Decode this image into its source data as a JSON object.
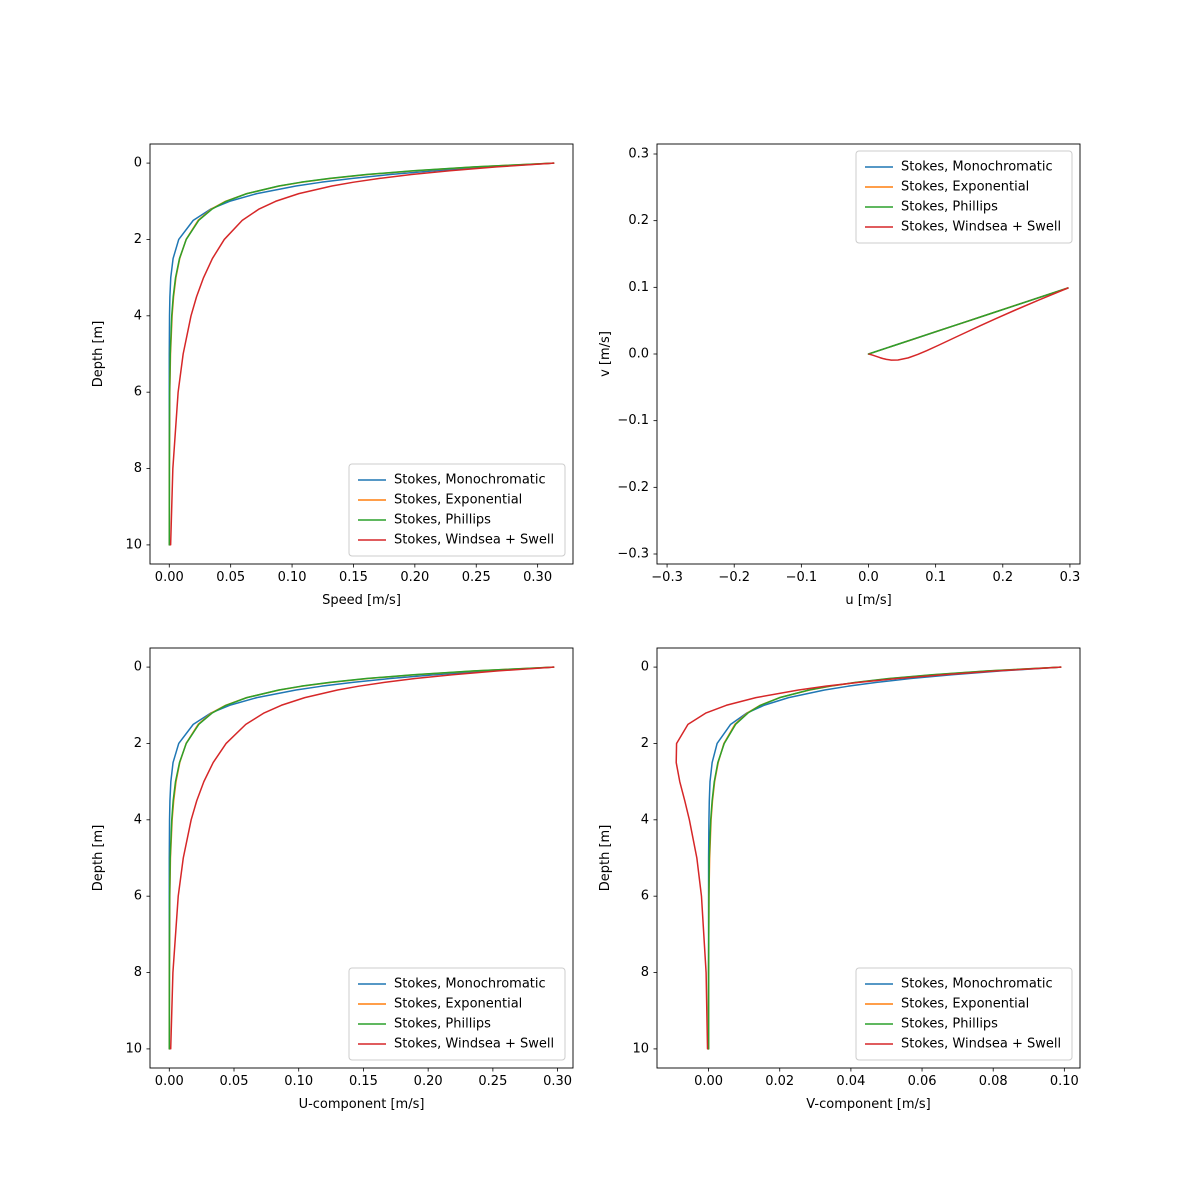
{
  "figure": {
    "background": "#ffffff",
    "text_color": "#000000",
    "legend_border_color": "#cccccc"
  },
  "chart_data": [
    {
      "type": "line",
      "name": "speed-profile",
      "title": "",
      "xlabel": "Speed  [m/s]",
      "ylabel": "Depth  [m]",
      "xlim": [
        -0.0157,
        0.3288
      ],
      "ylim": [
        10.5,
        -0.5
      ],
      "xticks": [
        0.0,
        0.05,
        0.1,
        0.15,
        0.2,
        0.25,
        0.3
      ],
      "xtick_labels": [
        "0.00",
        "0.05",
        "0.10",
        "0.15",
        "0.20",
        "0.25",
        "0.30"
      ],
      "yticks": [
        0,
        2,
        4,
        6,
        8,
        10
      ],
      "ytick_labels": [
        "0",
        "2",
        "4",
        "6",
        "8",
        "10"
      ],
      "grid": false,
      "legend_position": "lower-right",
      "series": [
        {
          "name": "Stokes, Monochromatic",
          "color": "#1f77b4",
          "x": [
            0.3131,
            0.2602,
            0.2162,
            0.1797,
            0.1494,
            0.1241,
            0.1032,
            0.0713,
            0.0492,
            0.034,
            0.0195,
            0.0077,
            0.0031,
            0.0012,
            0.0005,
            0.0002,
            0.0,
            0.0,
            0.0,
            0.0
          ],
          "y": [
            0,
            0.1,
            0.2,
            0.3,
            0.4,
            0.5,
            0.6,
            0.8,
            1,
            1.2,
            1.5,
            2,
            2.5,
            3,
            3.5,
            4,
            5,
            6,
            8,
            10
          ]
        },
        {
          "name": "Stokes, Exponential",
          "color": "#ff7f0e",
          "x": [
            0.3131,
            0.2497,
            0.2004,
            0.162,
            0.132,
            0.1083,
            0.0897,
            0.0631,
            0.0458,
            0.0344,
            0.0235,
            0.0137,
            0.0085,
            0.0054,
            0.0035,
            0.0023,
            0.001,
            0.0004,
            0.0001,
            0.0
          ],
          "y": [
            0,
            0.1,
            0.2,
            0.3,
            0.4,
            0.5,
            0.6,
            0.8,
            1,
            1.2,
            1.5,
            2,
            2.5,
            3,
            3.5,
            4,
            5,
            6,
            8,
            10
          ]
        },
        {
          "name": "Stokes, Phillips",
          "color": "#2ca02c",
          "x": [
            0.3131,
            0.2484,
            0.1987,
            0.1604,
            0.1306,
            0.1074,
            0.0891,
            0.0632,
            0.0463,
            0.035,
            0.024,
            0.0138,
            0.0083,
            0.0051,
            0.0032,
            0.002,
            0.0008,
            0.0003,
            0.0001,
            0.0
          ],
          "y": [
            0,
            0.1,
            0.2,
            0.3,
            0.4,
            0.5,
            0.6,
            0.8,
            1,
            1.2,
            1.5,
            2,
            2.5,
            3,
            3.5,
            4,
            5,
            6,
            8,
            10
          ]
        },
        {
          "name": "Stokes, Windsea + Swell",
          "color": "#d62728",
          "x": [
            0.3131,
            0.2666,
            0.2285,
            0.1972,
            0.1714,
            0.1501,
            0.1324,
            0.1055,
            0.0867,
            0.0733,
            0.0594,
            0.0448,
            0.0351,
            0.0279,
            0.0222,
            0.0177,
            0.0113,
            0.0072,
            0.0029,
            0.0011
          ],
          "y": [
            0,
            0.1,
            0.2,
            0.3,
            0.4,
            0.5,
            0.6,
            0.8,
            1,
            1.2,
            1.5,
            2,
            2.5,
            3,
            3.5,
            4,
            5,
            6,
            8,
            10
          ]
        }
      ]
    },
    {
      "type": "line",
      "name": "hodograph",
      "title": "",
      "xlabel": "u  [m/s]",
      "ylabel": "v  [m/s]",
      "xlim": [
        -0.315,
        0.315
      ],
      "ylim": [
        -0.315,
        0.315
      ],
      "xticks": [
        -0.3,
        -0.2,
        -0.1,
        0.0,
        0.1,
        0.2,
        0.3
      ],
      "xtick_labels": [
        "−0.3",
        "−0.2",
        "−0.1",
        "0.0",
        "0.1",
        "0.2",
        "0.3"
      ],
      "yticks": [
        -0.3,
        -0.2,
        -0.1,
        0.0,
        0.1,
        0.2,
        0.3
      ],
      "ytick_labels": [
        "−0.3",
        "−0.2",
        "−0.1",
        "0.0",
        "0.1",
        "0.2",
        "0.3"
      ],
      "grid": false,
      "legend_position": "upper-right",
      "series": [
        {
          "name": "Stokes, Monochromatic",
          "color": "#1f77b4",
          "x": [
            0.297,
            0.2468,
            0.2051,
            0.1705,
            0.1417,
            0.1178,
            0.0979,
            0.0676,
            0.0467,
            0.0323,
            0.0185,
            0.0073,
            0.0029,
            0.0012,
            0.0005,
            0.0002,
            0.0,
            0.0,
            0.0,
            0.0
          ],
          "y": [
            0.099,
            0.0823,
            0.0684,
            0.0568,
            0.0472,
            0.0393,
            0.0326,
            0.0225,
            0.0156,
            0.0108,
            0.0062,
            0.0024,
            0.001,
            0.0004,
            0.0002,
            0.0001,
            0.0,
            0.0,
            0.0,
            0.0
          ]
        },
        {
          "name": "Stokes, Exponential",
          "color": "#ff7f0e",
          "x": [
            0.297,
            0.2369,
            0.1901,
            0.1537,
            0.1252,
            0.1028,
            0.0851,
            0.0598,
            0.0435,
            0.0326,
            0.0223,
            0.013,
            0.0081,
            0.0052,
            0.0034,
            0.0022,
            0.0009,
            0.0004,
            0.0001,
            0.0
          ],
          "y": [
            0.099,
            0.079,
            0.0634,
            0.0512,
            0.0417,
            0.0343,
            0.0284,
            0.0199,
            0.0145,
            0.0109,
            0.0074,
            0.0043,
            0.0027,
            0.0017,
            0.0011,
            0.0007,
            0.0003,
            0.0001,
            0.0,
            0.0
          ]
        },
        {
          "name": "Stokes, Phillips",
          "color": "#2ca02c",
          "x": [
            0.297,
            0.2356,
            0.1885,
            0.1522,
            0.1239,
            0.1019,
            0.0846,
            0.0599,
            0.0439,
            0.0332,
            0.0228,
            0.0131,
            0.0079,
            0.0048,
            0.003,
            0.0019,
            0.0007,
            0.0003,
            0.0001,
            0.0
          ],
          "y": [
            0.099,
            0.0785,
            0.0628,
            0.0507,
            0.0413,
            0.034,
            0.0282,
            0.02,
            0.0146,
            0.0111,
            0.0076,
            0.0044,
            0.0026,
            0.0016,
            0.001,
            0.0006,
            0.0002,
            0.0001,
            0.0,
            0.0
          ]
        },
        {
          "name": "Stokes, Windsea + Swell",
          "color": "#d62728",
          "x": [
            0.297,
            0.254,
            0.2188,
            0.1899,
            0.1661,
            0.1464,
            0.13,
            0.1047,
            0.0866,
            0.0733,
            0.0591,
            0.0439,
            0.0339,
            0.0267,
            0.0212,
            0.0169,
            0.0108,
            0.0069,
            0.0028,
            0.0011
          ],
          "y": [
            0.099,
            0.0811,
            0.066,
            0.0531,
            0.0422,
            0.033,
            0.0253,
            0.0133,
            0.005,
            -0.0007,
            -0.0058,
            -0.009,
            -0.0091,
            -0.0081,
            -0.0067,
            -0.0054,
            -0.0033,
            -0.002,
            -0.0007,
            -0.0003
          ]
        }
      ]
    },
    {
      "type": "line",
      "name": "u-component-profile",
      "title": "",
      "xlabel": "U-component  [m/s]",
      "ylabel": "Depth  [m]",
      "xlim": [
        -0.0149,
        0.3119
      ],
      "ylim": [
        10.5,
        -0.5
      ],
      "xticks": [
        0.0,
        0.05,
        0.1,
        0.15,
        0.2,
        0.25,
        0.3
      ],
      "xtick_labels": [
        "0.00",
        "0.05",
        "0.10",
        "0.15",
        "0.20",
        "0.25",
        "0.30"
      ],
      "yticks": [
        0,
        2,
        4,
        6,
        8,
        10
      ],
      "ytick_labels": [
        "0",
        "2",
        "4",
        "6",
        "8",
        "10"
      ],
      "grid": false,
      "legend_position": "lower-right",
      "series": [
        {
          "name": "Stokes, Monochromatic",
          "color": "#1f77b4",
          "x": [
            0.297,
            0.2468,
            0.2051,
            0.1705,
            0.1417,
            0.1178,
            0.0979,
            0.0676,
            0.0467,
            0.0323,
            0.0185,
            0.0073,
            0.0029,
            0.0012,
            0.0005,
            0.0002,
            0.0,
            0.0,
            0.0,
            0.0
          ],
          "y": [
            0,
            0.1,
            0.2,
            0.3,
            0.4,
            0.5,
            0.6,
            0.8,
            1,
            1.2,
            1.5,
            2,
            2.5,
            3,
            3.5,
            4,
            5,
            6,
            8,
            10
          ]
        },
        {
          "name": "Stokes, Exponential",
          "color": "#ff7f0e",
          "x": [
            0.297,
            0.2369,
            0.1901,
            0.1537,
            0.1252,
            0.1028,
            0.0851,
            0.0598,
            0.0435,
            0.0326,
            0.0223,
            0.013,
            0.0081,
            0.0052,
            0.0034,
            0.0022,
            0.0009,
            0.0004,
            0.0001,
            0.0
          ],
          "y": [
            0,
            0.1,
            0.2,
            0.3,
            0.4,
            0.5,
            0.6,
            0.8,
            1,
            1.2,
            1.5,
            2,
            2.5,
            3,
            3.5,
            4,
            5,
            6,
            8,
            10
          ]
        },
        {
          "name": "Stokes, Phillips",
          "color": "#2ca02c",
          "x": [
            0.297,
            0.2356,
            0.1885,
            0.1522,
            0.1239,
            0.1019,
            0.0846,
            0.0599,
            0.0439,
            0.0332,
            0.0228,
            0.0131,
            0.0079,
            0.0048,
            0.003,
            0.0019,
            0.0007,
            0.0003,
            0.0001,
            0.0
          ],
          "y": [
            0,
            0.1,
            0.2,
            0.3,
            0.4,
            0.5,
            0.6,
            0.8,
            1,
            1.2,
            1.5,
            2,
            2.5,
            3,
            3.5,
            4,
            5,
            6,
            8,
            10
          ]
        },
        {
          "name": "Stokes, Windsea + Swell",
          "color": "#d62728",
          "x": [
            0.297,
            0.254,
            0.2188,
            0.1899,
            0.1661,
            0.1464,
            0.13,
            0.1047,
            0.0866,
            0.0733,
            0.0591,
            0.0439,
            0.0339,
            0.0267,
            0.0212,
            0.0169,
            0.0108,
            0.0069,
            0.0028,
            0.0011
          ],
          "y": [
            0,
            0.1,
            0.2,
            0.3,
            0.4,
            0.5,
            0.6,
            0.8,
            1,
            1.2,
            1.5,
            2,
            2.5,
            3,
            3.5,
            4,
            5,
            6,
            8,
            10
          ]
        }
      ]
    },
    {
      "type": "line",
      "name": "v-component-profile",
      "title": "",
      "xlabel": "V-component  [m/s]",
      "ylabel": "Depth  [m]",
      "xlim": [
        -0.0145,
        0.1044
      ],
      "ylim": [
        10.5,
        -0.5
      ],
      "xticks": [
        0.0,
        0.02,
        0.04,
        0.06,
        0.08,
        0.1
      ],
      "xtick_labels": [
        "0.00",
        "0.02",
        "0.04",
        "0.06",
        "0.08",
        "0.10"
      ],
      "yticks": [
        0,
        2,
        4,
        6,
        8,
        10
      ],
      "ytick_labels": [
        "0",
        "2",
        "4",
        "6",
        "8",
        "10"
      ],
      "grid": false,
      "legend_position": "lower-right",
      "series": [
        {
          "name": "Stokes, Monochromatic",
          "color": "#1f77b4",
          "x": [
            0.099,
            0.0823,
            0.0684,
            0.0568,
            0.0472,
            0.0393,
            0.0326,
            0.0225,
            0.0156,
            0.0108,
            0.0062,
            0.0024,
            0.001,
            0.0004,
            0.0002,
            0.0001,
            0.0,
            0.0,
            0.0,
            0.0
          ],
          "y": [
            0,
            0.1,
            0.2,
            0.3,
            0.4,
            0.5,
            0.6,
            0.8,
            1,
            1.2,
            1.5,
            2,
            2.5,
            3,
            3.5,
            4,
            5,
            6,
            8,
            10
          ]
        },
        {
          "name": "Stokes, Exponential",
          "color": "#ff7f0e",
          "x": [
            0.099,
            0.079,
            0.0634,
            0.0512,
            0.0417,
            0.0343,
            0.0284,
            0.0199,
            0.0145,
            0.0109,
            0.0074,
            0.0043,
            0.0027,
            0.0017,
            0.0011,
            0.0007,
            0.0003,
            0.0001,
            0.0,
            0.0
          ],
          "y": [
            0,
            0.1,
            0.2,
            0.3,
            0.4,
            0.5,
            0.6,
            0.8,
            1,
            1.2,
            1.5,
            2,
            2.5,
            3,
            3.5,
            4,
            5,
            6,
            8,
            10
          ]
        },
        {
          "name": "Stokes, Phillips",
          "color": "#2ca02c",
          "x": [
            0.099,
            0.0785,
            0.0628,
            0.0507,
            0.0413,
            0.034,
            0.0282,
            0.02,
            0.0146,
            0.0111,
            0.0076,
            0.0044,
            0.0026,
            0.0016,
            0.001,
            0.0006,
            0.0002,
            0.0001,
            0.0,
            0.0
          ],
          "y": [
            0,
            0.1,
            0.2,
            0.3,
            0.4,
            0.5,
            0.6,
            0.8,
            1,
            1.2,
            1.5,
            2,
            2.5,
            3,
            3.5,
            4,
            5,
            6,
            8,
            10
          ]
        },
        {
          "name": "Stokes, Windsea + Swell",
          "color": "#d62728",
          "x": [
            0.099,
            0.0811,
            0.066,
            0.0531,
            0.0422,
            0.033,
            0.0253,
            0.0133,
            0.005,
            -0.0007,
            -0.0058,
            -0.009,
            -0.0091,
            -0.0081,
            -0.0067,
            -0.0054,
            -0.0033,
            -0.002,
            -0.0007,
            -0.0003
          ],
          "y": [
            0,
            0.1,
            0.2,
            0.3,
            0.4,
            0.5,
            0.6,
            0.8,
            1,
            1.2,
            1.5,
            2,
            2.5,
            3,
            3.5,
            4,
            5,
            6,
            8,
            10
          ]
        }
      ]
    }
  ]
}
